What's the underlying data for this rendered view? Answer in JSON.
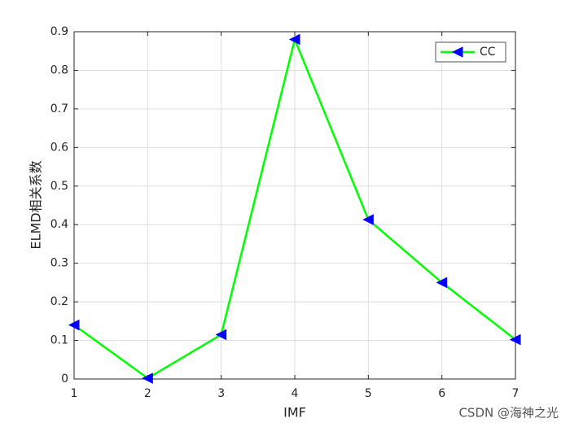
{
  "chart_data": {
    "type": "line",
    "xlabel": "IMF",
    "ylabel": "ELMD相关系数",
    "x": [
      1,
      2,
      3,
      4,
      5,
      6,
      7
    ],
    "series": [
      {
        "name": "CC",
        "color": "#00ff00",
        "marker_color": "#0000ff",
        "values": [
          0.14,
          0.002,
          0.115,
          0.88,
          0.413,
          0.25,
          0.102
        ]
      }
    ],
    "xlim": [
      1,
      7
    ],
    "xticks": [
      1,
      2,
      3,
      4,
      5,
      6,
      7
    ],
    "ylim": [
      0,
      0.9
    ],
    "yticks": [
      0,
      0.1,
      0.2,
      0.3,
      0.4,
      0.5,
      0.6,
      0.7,
      0.8,
      0.9
    ],
    "grid": true,
    "legend": "northeast",
    "watermark": "CSDN @海神之光"
  }
}
